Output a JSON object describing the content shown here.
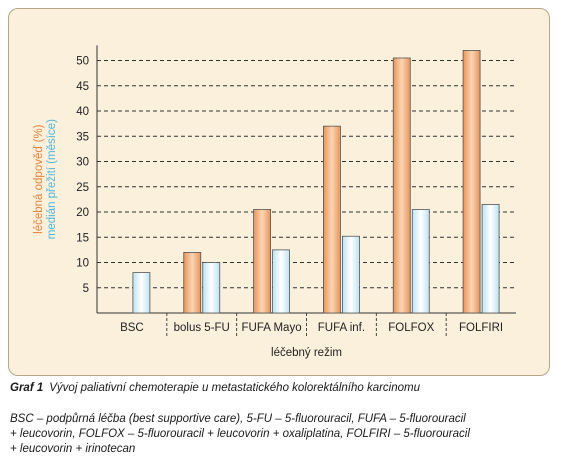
{
  "chart_data": {
    "type": "bar",
    "categories": [
      "BSC",
      "bolus 5-FU",
      "FUFA Mayo",
      "FUFA inf.",
      "FOLFOX",
      "FOLFIRI"
    ],
    "series": [
      {
        "name": "léčebná odpověď (%)",
        "values": [
          null,
          12,
          20.5,
          37,
          50.5,
          52
        ],
        "color": "#f0a870"
      },
      {
        "name": "medián přežití (měsíce)",
        "values": [
          8,
          10,
          12.5,
          15.2,
          20.5,
          21.5
        ],
        "color": "#d3eef8"
      }
    ],
    "xlabel": "léčebný režim",
    "ylabel_parts": [
      "léčebná odpověď (%)",
      "medián přežití (měsíce)"
    ],
    "ylim": [
      0,
      53
    ],
    "yticks": [
      5,
      10,
      15,
      20,
      25,
      30,
      35,
      40,
      45,
      50
    ],
    "grid": true
  },
  "caption": {
    "label": "Graf 1",
    "text": "Vývoj paliativní chemoterapie u metastatického kolorektálního karcinomu"
  },
  "note": {
    "lines": [
      "BSC – podpůrná léčba (best supportive care), 5-FU – 5-fluorouracil, FUFA – 5-fluorouracil",
      "+ leucovorin, FOLFOX – 5-fluorouracil + leucovorin + oxaliplatina, FOLFIRI – 5-fluorouracil",
      "+ leucovorin + irinotecan"
    ]
  }
}
